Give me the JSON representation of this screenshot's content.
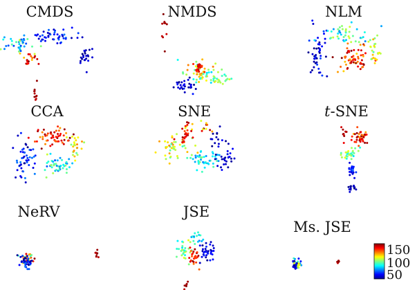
{
  "figure": {
    "panels": [
      {
        "id": "cmds",
        "title_main": "CMDS",
        "title_prefix": ""
      },
      {
        "id": "nmds",
        "title_main": "NMDS",
        "title_prefix": ""
      },
      {
        "id": "nlm",
        "title_main": "NLM",
        "title_prefix": ""
      },
      {
        "id": "cca",
        "title_main": "CCA",
        "title_prefix": ""
      },
      {
        "id": "sne",
        "title_main": "SNE",
        "title_prefix": ""
      },
      {
        "id": "tsne",
        "title_main": "-SNE",
        "title_prefix": "t"
      },
      {
        "id": "nerv",
        "title_main": "NeRV",
        "title_prefix": ""
      },
      {
        "id": "jse",
        "title_main": "JSE",
        "title_prefix": ""
      },
      {
        "id": "msjse",
        "title_main": "Ms. JSE",
        "title_prefix": ""
      }
    ],
    "colorbar": {
      "ticks": [
        "150",
        "100",
        "50"
      ],
      "range": [
        40,
        160
      ],
      "colormap": "jet"
    }
  },
  "chart_data": {
    "type": "scatter",
    "title": "",
    "xlabel": "",
    "ylabel": "",
    "color_range": [
      40,
      160
    ],
    "colormap": "jet",
    "grid": false,
    "legend": "colorbar-right",
    "panels": [
      {
        "name": "CMDS",
        "clusters": [
          {
            "cx": -3.5,
            "cy": 0.5,
            "sx": 1.8,
            "sy": 0.9,
            "n": 40,
            "v0": 60,
            "v1": 110
          },
          {
            "cx": 0.5,
            "cy": 1.3,
            "sx": 2.0,
            "sy": 0.7,
            "n": 45,
            "v0": 45,
            "v1": 70
          },
          {
            "cx": 3.6,
            "cy": -0.6,
            "sx": 0.7,
            "sy": 1.2,
            "n": 22,
            "v0": 40,
            "v1": 55
          },
          {
            "cx": -2.0,
            "cy": -1.0,
            "sx": 0.8,
            "sy": 0.7,
            "n": 20,
            "v0": 120,
            "v1": 160
          },
          {
            "cx": -1.5,
            "cy": -4.2,
            "sx": 0.3,
            "sy": 1.2,
            "n": 10,
            "v0": 150,
            "v1": 160
          }
        ]
      },
      {
        "name": "NMDS",
        "clusters": [
          {
            "cx": 0.8,
            "cy": -2.2,
            "sx": 1.5,
            "sy": 1.0,
            "n": 50,
            "v0": 80,
            "v1": 130
          },
          {
            "cx": -0.9,
            "cy": -3.4,
            "sx": 1.0,
            "sy": 0.6,
            "n": 30,
            "v0": 40,
            "v1": 60
          },
          {
            "cx": 2.8,
            "cy": -2.5,
            "sx": 1.0,
            "sy": 0.8,
            "n": 25,
            "v0": 90,
            "v1": 110
          },
          {
            "cx": 0.6,
            "cy": -1.6,
            "sx": 0.5,
            "sy": 0.4,
            "n": 20,
            "v0": 135,
            "v1": 160
          },
          {
            "cx": -3.0,
            "cy": 2.4,
            "sx": 0.4,
            "sy": 1.6,
            "n": 10,
            "v0": 150,
            "v1": 160
          }
        ]
      },
      {
        "name": "NLM",
        "clusters": [
          {
            "cx": -2.4,
            "cy": 0.0,
            "sx": 0.9,
            "sy": 2.2,
            "n": 45,
            "v0": 40,
            "v1": 65
          },
          {
            "cx": 0.0,
            "cy": 1.6,
            "sx": 1.8,
            "sy": 0.9,
            "n": 45,
            "v0": 60,
            "v1": 110
          },
          {
            "cx": 1.0,
            "cy": -0.7,
            "sx": 1.5,
            "sy": 1.3,
            "n": 60,
            "v0": 120,
            "v1": 160
          },
          {
            "cx": 3.0,
            "cy": 0.0,
            "sx": 0.6,
            "sy": 1.5,
            "n": 25,
            "v0": 95,
            "v1": 125
          }
        ]
      },
      {
        "name": "CCA",
        "clusters": [
          {
            "cx": -2.4,
            "cy": -0.3,
            "sx": 1.0,
            "sy": 1.9,
            "n": 50,
            "v0": 40,
            "v1": 70
          },
          {
            "cx": 0.4,
            "cy": 1.6,
            "sx": 1.6,
            "sy": 0.9,
            "n": 55,
            "v0": 125,
            "v1": 160
          },
          {
            "cx": 0.6,
            "cy": -1.2,
            "sx": 1.5,
            "sy": 0.9,
            "n": 45,
            "v0": 65,
            "v1": 110
          },
          {
            "cx": 2.6,
            "cy": 0.6,
            "sx": 0.8,
            "sy": 1.2,
            "n": 25,
            "v0": 95,
            "v1": 130
          }
        ]
      },
      {
        "name": "SNE",
        "clusters": [
          {
            "cx": -2.3,
            "cy": 0.6,
            "sx": 1.4,
            "sy": 1.1,
            "n": 45,
            "v0": 90,
            "v1": 130
          },
          {
            "cx": -1.0,
            "cy": 1.6,
            "sx": 0.7,
            "sy": 0.6,
            "n": 20,
            "v0": 135,
            "v1": 160
          },
          {
            "cx": 0.6,
            "cy": -0.6,
            "sx": 1.6,
            "sy": 1.0,
            "n": 45,
            "v0": 70,
            "v1": 100
          },
          {
            "cx": 2.8,
            "cy": -0.4,
            "sx": 0.8,
            "sy": 0.8,
            "n": 25,
            "v0": 40,
            "v1": 55
          },
          {
            "cx": 0.0,
            "cy": 2.6,
            "sx": 1.8,
            "sy": 0.5,
            "n": 20,
            "v0": 110,
            "v1": 160
          },
          {
            "cx": 2.2,
            "cy": 1.6,
            "sx": 0.9,
            "sy": 0.9,
            "n": 15,
            "v0": 40,
            "v1": 55
          }
        ]
      },
      {
        "name": "t-SNE",
        "clusters": [
          {
            "cx": 1.2,
            "cy": 2.2,
            "sx": 1.0,
            "sy": 0.8,
            "n": 40,
            "v0": 120,
            "v1": 160
          },
          {
            "cx": -0.7,
            "cy": 2.8,
            "sx": 0.4,
            "sy": 0.4,
            "n": 10,
            "v0": 150,
            "v1": 160
          },
          {
            "cx": 0.0,
            "cy": 0.2,
            "sx": 0.8,
            "sy": 0.7,
            "n": 30,
            "v0": 80,
            "v1": 115
          },
          {
            "cx": 0.3,
            "cy": -1.8,
            "sx": 0.4,
            "sy": 0.6,
            "n": 20,
            "v0": 45,
            "v1": 65
          },
          {
            "cx": 0.2,
            "cy": -3.8,
            "sx": 0.4,
            "sy": 0.4,
            "n": 12,
            "v0": 40,
            "v1": 50
          }
        ]
      },
      {
        "name": "NeRV",
        "clusters": [
          {
            "cx": -2.8,
            "cy": -0.2,
            "sx": 0.6,
            "sy": 0.6,
            "n": 30,
            "v0": 90,
            "v1": 160
          },
          {
            "cx": -3.0,
            "cy": -0.6,
            "sx": 0.7,
            "sy": 0.6,
            "n": 35,
            "v0": 40,
            "v1": 70
          },
          {
            "cx": 3.4,
            "cy": 0.2,
            "sx": 0.15,
            "sy": 0.35,
            "n": 8,
            "v0": 150,
            "v1": 160
          }
        ]
      },
      {
        "name": "JSE",
        "clusters": [
          {
            "cx": -0.9,
            "cy": 0.2,
            "sx": 0.7,
            "sy": 0.9,
            "n": 30,
            "v0": 80,
            "v1": 115
          },
          {
            "cx": 1.4,
            "cy": 0.0,
            "sx": 0.7,
            "sy": 1.0,
            "n": 35,
            "v0": 40,
            "v1": 60
          },
          {
            "cx": 0.0,
            "cy": -0.5,
            "sx": 0.5,
            "sy": 0.9,
            "n": 25,
            "v0": 130,
            "v1": 160
          },
          {
            "cx": 0.3,
            "cy": 1.5,
            "sx": 0.5,
            "sy": 0.4,
            "n": 15,
            "v0": 65,
            "v1": 95
          },
          {
            "cx": -0.6,
            "cy": -3.2,
            "sx": 0.3,
            "sy": 0.4,
            "n": 6,
            "v0": 150,
            "v1": 160
          }
        ]
      },
      {
        "name": "Ms. JSE",
        "clusters": [
          {
            "cx": -2.7,
            "cy": -0.3,
            "sx": 0.5,
            "sy": 0.45,
            "n": 30,
            "v0": 50,
            "v1": 120
          },
          {
            "cx": -2.9,
            "cy": -0.5,
            "sx": 0.4,
            "sy": 0.35,
            "n": 15,
            "v0": 40,
            "v1": 55
          },
          {
            "cx": 1.3,
            "cy": -0.1,
            "sx": 0.15,
            "sy": 0.25,
            "n": 8,
            "v0": 150,
            "v1": 160
          }
        ]
      }
    ]
  }
}
